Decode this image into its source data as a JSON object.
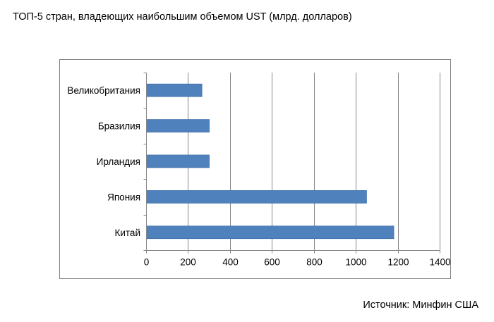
{
  "header": {
    "title": "ТОП-5 стран, владеющих наибольшим объемом UST (млрд. долларов)"
  },
  "footer": {
    "source": "Источник: Минфин США"
  },
  "colors": {
    "bar": "#4f81bd",
    "bar_edge": "#3a6aa3",
    "grid": "#868686",
    "frame": "#7f7f7f"
  },
  "chart_data": {
    "type": "bar",
    "orientation": "horizontal",
    "categories": [
      "Великобритания",
      "Бразилия",
      "Ирландия",
      "Япония",
      "Китай"
    ],
    "values": [
      265,
      300,
      300,
      1050,
      1180
    ],
    "xlim": [
      0,
      1400
    ],
    "xticks": [
      "0",
      "200",
      "400",
      "600",
      "800",
      "1000",
      "1200",
      "1400"
    ],
    "xtick_values": [
      0,
      200,
      400,
      600,
      800,
      1000,
      1200,
      1400
    ],
    "grid": "vertical major gridlines",
    "legend": "none"
  }
}
